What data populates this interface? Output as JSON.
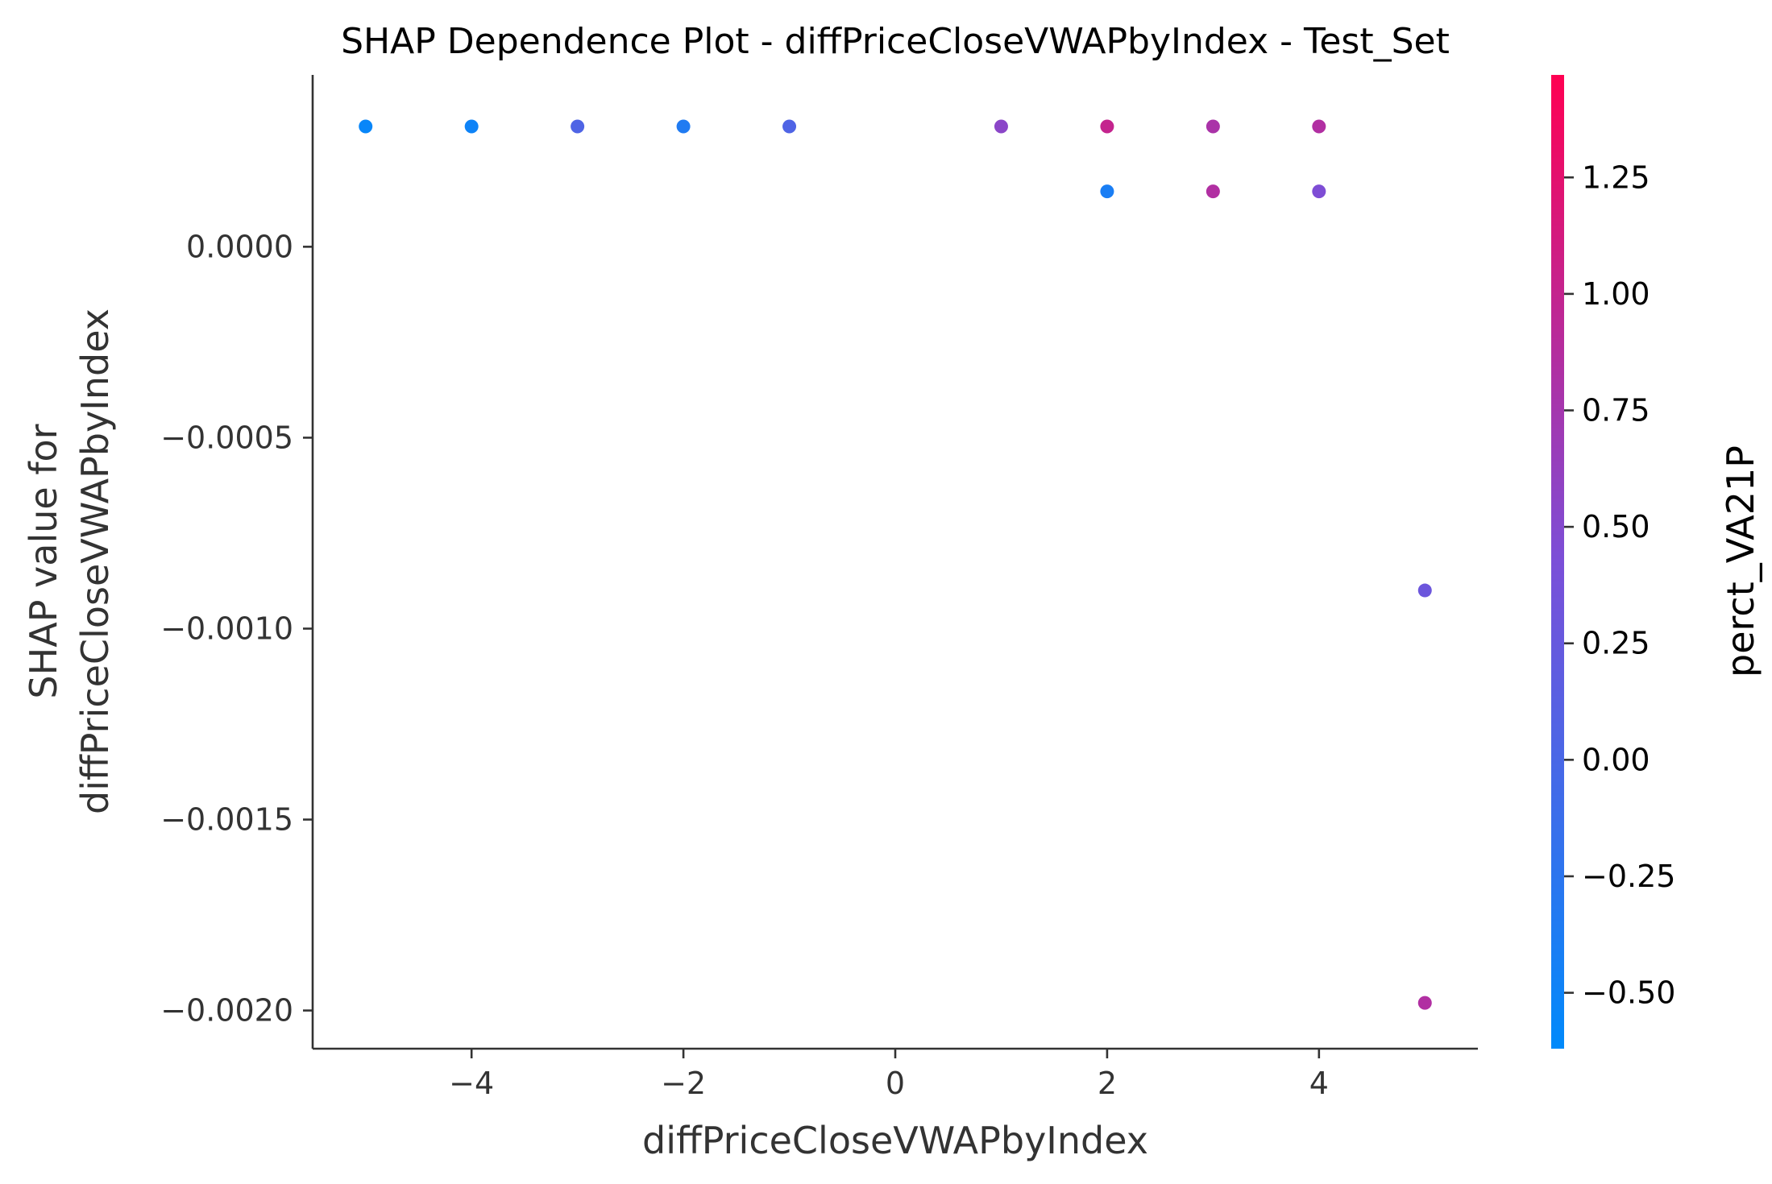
{
  "chart_data": {
    "type": "scatter",
    "title": "SHAP Dependence Plot - diffPriceCloseVWAPbyIndex - Test_Set",
    "xlabel": "diffPriceCloseVWAPbyIndex",
    "ylabel_lines": [
      "SHAP value for",
      "diffPriceCloseVWAPbyIndex"
    ],
    "xlim": [
      -5.5,
      5.5
    ],
    "ylim": [
      -0.0021,
      0.00045
    ],
    "xticks": [
      -4,
      -2,
      0,
      2,
      4
    ],
    "xtick_labels": [
      "−4",
      "−2",
      "0",
      "2",
      "4"
    ],
    "yticks": [
      0.0,
      -0.0005,
      -0.001,
      -0.0015,
      -0.002
    ],
    "ytick_labels": [
      "0.0000",
      "−0.0005",
      "−0.0010",
      "−0.0015",
      "−0.0020"
    ],
    "grid": false,
    "colorbar": {
      "label": "perct_VA21P",
      "range": [
        -0.62,
        1.47
      ],
      "ticks": [
        -0.5,
        -0.25,
        0.0,
        0.25,
        0.5,
        0.75,
        1.0,
        1.25
      ],
      "tick_labels": [
        "−0.50",
        "−0.25",
        "0.00",
        "0.25",
        "0.50",
        "0.75",
        "1.00",
        "1.25"
      ],
      "colormap": [
        "#008afb",
        "#ff0052"
      ]
    },
    "points": [
      {
        "x": -5,
        "y": 0.000315,
        "c": -0.55
      },
      {
        "x": -4,
        "y": 0.000315,
        "c": -0.5
      },
      {
        "x": -3,
        "y": 0.000315,
        "c": 0.05
      },
      {
        "x": -2,
        "y": 0.000315,
        "c": -0.35
      },
      {
        "x": -1,
        "y": 0.000315,
        "c": 0.05
      },
      {
        "x": 1,
        "y": 0.000315,
        "c": 0.55
      },
      {
        "x": 2,
        "y": 0.000315,
        "c": 1.0
      },
      {
        "x": 3,
        "y": 0.000315,
        "c": 0.8
      },
      {
        "x": 4,
        "y": 0.000315,
        "c": 0.85
      },
      {
        "x": 2,
        "y": 0.000145,
        "c": -0.4
      },
      {
        "x": 3,
        "y": 0.000145,
        "c": 0.85
      },
      {
        "x": 4,
        "y": 0.000145,
        "c": 0.45
      },
      {
        "x": 5,
        "y": -0.0009,
        "c": 0.3
      },
      {
        "x": 5,
        "y": -0.00198,
        "c": 0.85
      }
    ]
  }
}
